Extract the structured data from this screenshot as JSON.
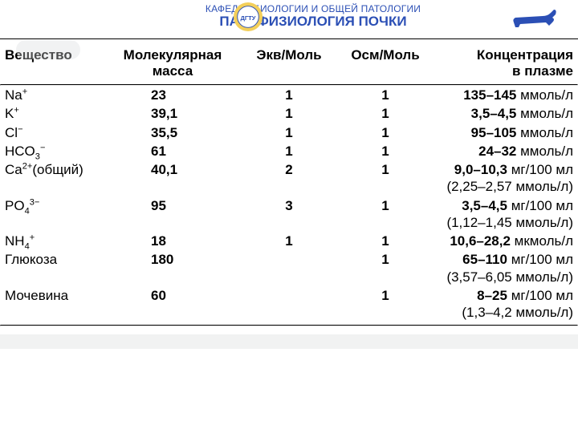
{
  "header": {
    "department": "КАФЕДРА БИОЛОГИИ И ОБЩЕЙ ПАТОЛОГИИ",
    "title": "ПАТОФИЗИОЛОГИЯ ПОЧКИ",
    "logo_ring_color": "#f3cf5a",
    "logo_inner_color": "#ffffff",
    "logo_text_color": "#2b4fb5",
    "dog_color": "#2b4fb5"
  },
  "columns": {
    "substance": "Вещество",
    "mass_line1": "Молекулярная",
    "mass_line2": "масса",
    "eq": "Экв/Моль",
    "osm": "Осм/Моль",
    "conc_line1": "Концентрация",
    "conc_line2": "в плазме"
  },
  "rows": [
    {
      "sub_html": "Na<sup>+</sup>",
      "mass": "23",
      "eq": "1",
      "osm": "1",
      "conc_val": "135–145",
      "conc_unit": "ммоль/л"
    },
    {
      "sub_html": "K<sup>+</sup>",
      "mass": "39,1",
      "eq": "1",
      "osm": "1",
      "conc_val": "3,5–4,5",
      "conc_unit": "ммоль/л"
    },
    {
      "sub_html": "Cl<sup>−</sup>",
      "mass": "35,5",
      "eq": "1",
      "osm": "1",
      "conc_val": "95–105",
      "conc_unit": "ммоль/л"
    },
    {
      "sub_html": "HCO<sub>3</sub><sup>−</sup>",
      "mass": "61",
      "eq": "1",
      "osm": "1",
      "conc_val": "24–32",
      "conc_unit": "ммоль/л"
    },
    {
      "sub_html": "Ca<sup>2+</sup>(общий)",
      "mass": "40,1",
      "eq": "2",
      "osm": "1",
      "conc_val": "9,0–10,3",
      "conc_unit": "мг/100 мл",
      "sec": "(2,25–2,57  ммоль/л)"
    },
    {
      "sub_html": "PO<sub>4</sub><sup>3−</sup>",
      "mass": "95",
      "eq": "3",
      "osm": "1",
      "conc_val": "3,5–4,5",
      "conc_unit": "мг/100 мл",
      "sec": "(1,12–1,45  ммоль/л)"
    },
    {
      "sub_html": "NH<sub>4</sub><sup>+</sup>",
      "mass": "18",
      "eq": "1",
      "osm": "1",
      "conc_val": "10,6–28,2",
      "conc_unit": "мкмоль/л"
    },
    {
      "sub_html": "Глюкоза",
      "mass": "180",
      "eq": "",
      "osm": "1",
      "conc_val": "65–110",
      "conc_unit": "мг/100 мл",
      "sec": "(3,57–6,05  ммоль/л)"
    },
    {
      "sub_html": "Мочевина",
      "mass": "60",
      "eq": "",
      "osm": "1",
      "conc_val": "8–25",
      "conc_unit": "мг/100 мл",
      "sec": "(1,3–4,2  ммоль/л)"
    }
  ]
}
